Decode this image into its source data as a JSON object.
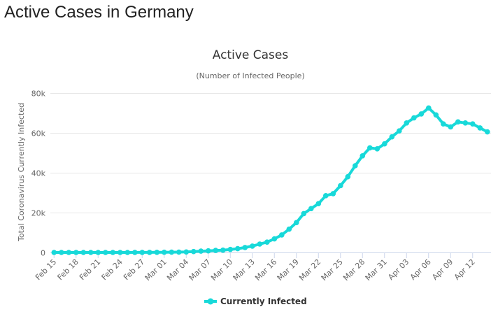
{
  "page": {
    "title": "Active Cases in Germany"
  },
  "colors": {
    "series": "#18d9d9",
    "grid": "#e6e6e6",
    "axis": "#ccd6eb"
  },
  "chart_data": {
    "type": "line",
    "title": "Active Cases",
    "subtitle": "(Number of Infected People)",
    "xlabel": "",
    "ylabel": "Total Coronavirus Currently Infected",
    "ylim": [
      0,
      80000
    ],
    "yticks": [
      0,
      20000,
      40000,
      60000,
      80000
    ],
    "ytick_labels": [
      "0",
      "20k",
      "40k",
      "60k",
      "80k"
    ],
    "grid": true,
    "legend": "bottom-center",
    "categories": [
      "Feb 15",
      "Feb 16",
      "Feb 17",
      "Feb 18",
      "Feb 19",
      "Feb 20",
      "Feb 21",
      "Feb 22",
      "Feb 23",
      "Feb 24",
      "Feb 25",
      "Feb 26",
      "Feb 27",
      "Feb 28",
      "Feb 29",
      "Mar 01",
      "Mar 02",
      "Mar 03",
      "Mar 04",
      "Mar 05",
      "Mar 06",
      "Mar 07",
      "Mar 08",
      "Mar 09",
      "Mar 10",
      "Mar 11",
      "Mar 12",
      "Mar 13",
      "Mar 14",
      "Mar 15",
      "Mar 16",
      "Mar 17",
      "Mar 18",
      "Mar 19",
      "Mar 20",
      "Mar 21",
      "Mar 22",
      "Mar 23",
      "Mar 24",
      "Mar 25",
      "Mar 26",
      "Mar 27",
      "Mar 28",
      "Mar 29",
      "Mar 30",
      "Mar 31",
      "Apr 01",
      "Apr 02",
      "Apr 03",
      "Apr 04",
      "Apr 05",
      "Apr 06",
      "Apr 07",
      "Apr 08",
      "Apr 09",
      "Apr 10",
      "Apr 11",
      "Apr 12",
      "Apr 13",
      "Apr 14"
    ],
    "x_tick_labels": [
      "Feb 15",
      "Feb 18",
      "Feb 21",
      "Feb 24",
      "Feb 27",
      "Mar 01",
      "Mar 04",
      "Mar 07",
      "Mar 10",
      "Mar 13",
      "Mar 16",
      "Mar 19",
      "Mar 22",
      "Mar 25",
      "Mar 28",
      "Mar 31",
      "Apr 03",
      "Apr 06",
      "Apr 09",
      "Apr 12"
    ],
    "series": [
      {
        "name": "Currently Infected",
        "values": [
          10,
          10,
          10,
          10,
          10,
          10,
          10,
          10,
          10,
          10,
          10,
          20,
          30,
          40,
          60,
          120,
          150,
          180,
          250,
          450,
          650,
          800,
          1000,
          1150,
          1500,
          1900,
          2500,
          3200,
          4200,
          5200,
          6800,
          8800,
          11700,
          15000,
          19500,
          22000,
          24500,
          28500,
          29500,
          33500,
          38000,
          43500,
          48500,
          52500,
          52000,
          54500,
          58000,
          61000,
          65000,
          67500,
          69500,
          72500,
          69000,
          64500,
          63000,
          65500,
          65000,
          64500,
          62500,
          60500
        ]
      }
    ]
  }
}
